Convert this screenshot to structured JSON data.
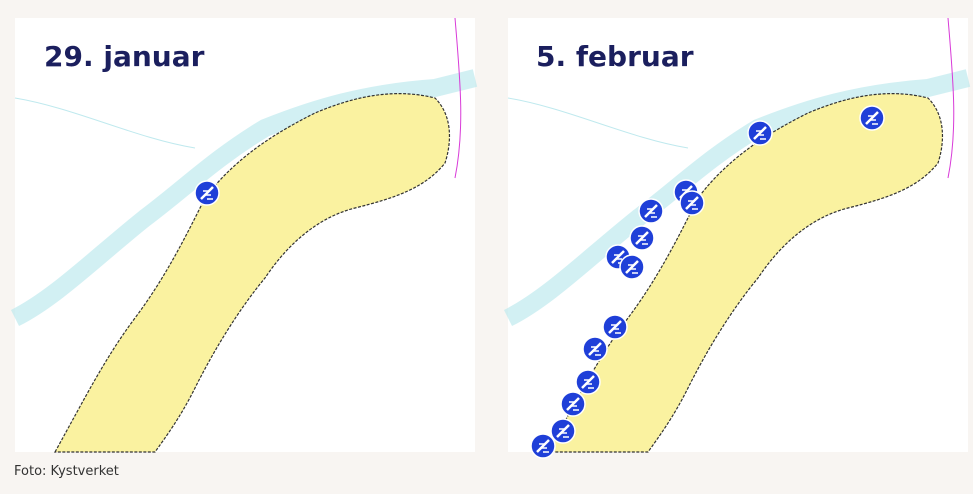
{
  "panels": [
    {
      "title": "29. januar"
    },
    {
      "title": "5. februar"
    }
  ],
  "caption": "Foto: Kystverket"
}
